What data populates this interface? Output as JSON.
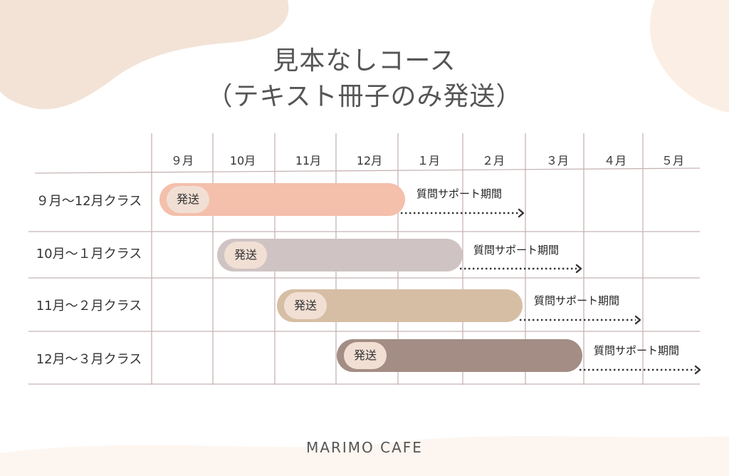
{
  "title": {
    "line1": "見本なしコース",
    "line2": "（テキスト冊子のみ発送）"
  },
  "months": [
    "９月",
    "10月",
    "11月",
    "12月",
    "１月",
    "２月",
    "３月",
    "４月",
    "５月"
  ],
  "rows": [
    {
      "label": "９月〜12月クラス",
      "badge": "発送",
      "support": "質問サポート期間",
      "color": "#f4bfab"
    },
    {
      "label": "10月〜１月クラス",
      "badge": "発送",
      "support": "質問サポート期間",
      "color": "#cfc3c3"
    },
    {
      "label": "11月〜２月クラス",
      "badge": "発送",
      "support": "質問サポート期間",
      "color": "#d6bea4"
    },
    {
      "label": "12月〜３月クラス",
      "badge": "発送",
      "support": "質問サポート期間",
      "color": "#a38d85"
    }
  ],
  "footer": "MARIMO CAFE",
  "colors": {
    "blob": "#f3e3d7",
    "grid": "#c7b4b4",
    "arrow": "#333333"
  }
}
